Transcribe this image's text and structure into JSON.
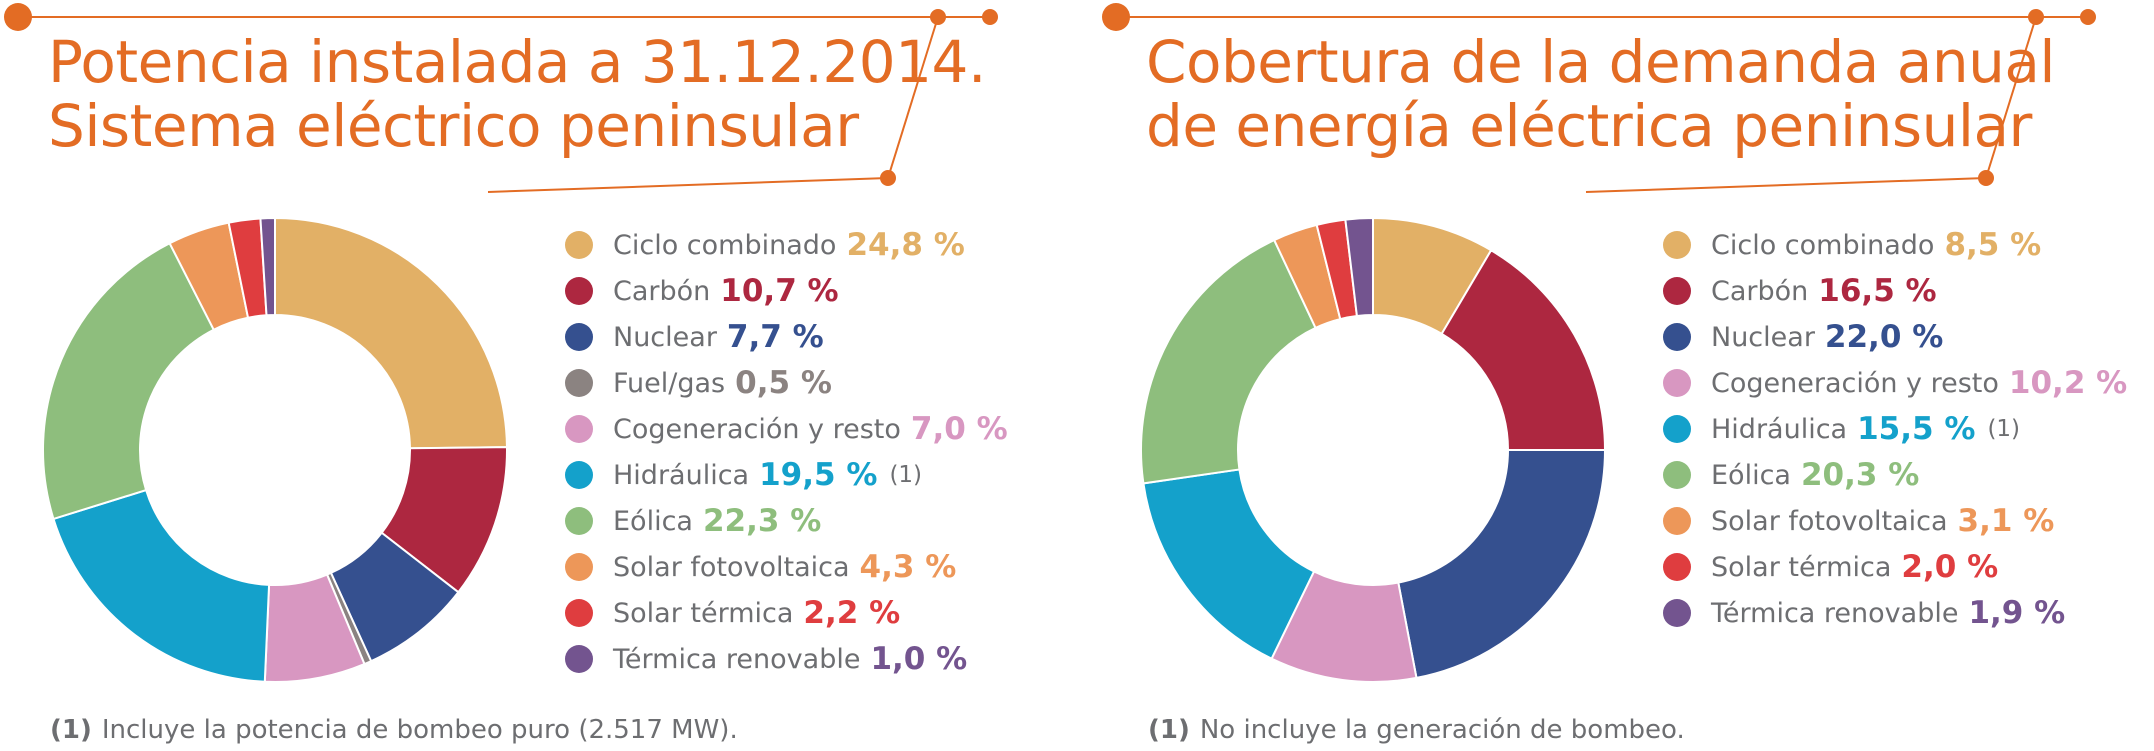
{
  "accent_color": "#e36c24",
  "panels": [
    {
      "title_lines": [
        "Potencia instalada a 31.12.2014.",
        "Sistema eléctrico peninsular"
      ],
      "footnote_marker": "(1)",
      "footnote_text": "Incluye la potencia de bombeo puro (2.517 MW).",
      "chart_data": {
        "type": "pie",
        "donut": true,
        "title": "Potencia instalada a 31.12.2014. Sistema eléctrico peninsular",
        "unit": "%",
        "slices": [
          {
            "label": "Ciclo combinado",
            "value": 24.8,
            "value_text": "24,8 %",
            "color": "#e2b066",
            "note": ""
          },
          {
            "label": "Carbón",
            "value": 10.7,
            "value_text": "10,7 %",
            "color": "#ad2740",
            "note": ""
          },
          {
            "label": "Nuclear",
            "value": 7.7,
            "value_text": "7,7 %",
            "color": "#35508f",
            "note": ""
          },
          {
            "label": "Fuel/gas",
            "value": 0.5,
            "value_text": "0,5 %",
            "color": "#8b8381",
            "note": ""
          },
          {
            "label": "Cogeneración y resto",
            "value": 7.0,
            "value_text": "7,0 %",
            "color": "#d897c1",
            "note": ""
          },
          {
            "label": "Hidráulica",
            "value": 19.5,
            "value_text": "19,5 %",
            "color": "#14a1cb",
            "note": "(1)"
          },
          {
            "label": "Eólica",
            "value": 22.3,
            "value_text": "22,3 %",
            "color": "#8ebe7d",
            "note": ""
          },
          {
            "label": "Solar fotovoltaica",
            "value": 4.3,
            "value_text": "4,3 %",
            "color": "#ed9759",
            "note": ""
          },
          {
            "label": "Solar térmica",
            "value": 2.2,
            "value_text": "2,2 %",
            "color": "#df3d3f",
            "note": ""
          },
          {
            "label": "Térmica renovable",
            "value": 1.0,
            "value_text": "1,0 %",
            "color": "#73548f",
            "note": ""
          }
        ]
      }
    },
    {
      "title_lines": [
        "Cobertura de la demanda anual",
        "de energía eléctrica peninsular"
      ],
      "footnote_marker": "(1)",
      "footnote_text": "No incluye la generación de bombeo.",
      "chart_data": {
        "type": "pie",
        "donut": true,
        "title": "Cobertura de la demanda anual de energía eléctrica peninsular",
        "unit": "%",
        "slices": [
          {
            "label": "Ciclo combinado",
            "value": 8.5,
            "value_text": "8,5 %",
            "color": "#e2b066",
            "note": ""
          },
          {
            "label": "Carbón",
            "value": 16.5,
            "value_text": "16,5 %",
            "color": "#ad2740",
            "note": ""
          },
          {
            "label": "Nuclear",
            "value": 22.0,
            "value_text": "22,0 %",
            "color": "#35508f",
            "note": ""
          },
          {
            "label": "Cogeneración y resto",
            "value": 10.2,
            "value_text": "10,2 %",
            "color": "#d897c1",
            "note": ""
          },
          {
            "label": "Hidráulica",
            "value": 15.5,
            "value_text": "15,5 %",
            "color": "#14a1cb",
            "note": "(1)"
          },
          {
            "label": "Eólica",
            "value": 20.3,
            "value_text": "20,3 %",
            "color": "#8ebe7d",
            "note": ""
          },
          {
            "label": "Solar fotovoltaica",
            "value": 3.1,
            "value_text": "3,1 %",
            "color": "#ed9759",
            "note": ""
          },
          {
            "label": "Solar térmica",
            "value": 2.0,
            "value_text": "2,0 %",
            "color": "#df3d3f",
            "note": ""
          },
          {
            "label": "Térmica renovable",
            "value": 1.9,
            "value_text": "1,9 %",
            "color": "#73548f",
            "note": ""
          }
        ]
      }
    }
  ]
}
